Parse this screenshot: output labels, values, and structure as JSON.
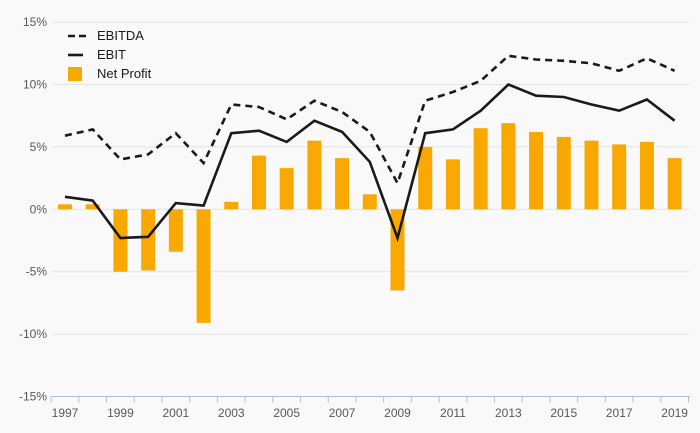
{
  "chart_data": {
    "type": "combo-bar-line",
    "title": "",
    "categories": [
      "1997",
      "1998",
      "1999",
      "2000",
      "2001",
      "2002",
      "2003",
      "2004",
      "2005",
      "2006",
      "2007",
      "2008",
      "2009",
      "2010",
      "2011",
      "2012",
      "2013",
      "2014",
      "2015",
      "2016",
      "2017",
      "2018",
      "2019"
    ],
    "series": [
      {
        "name": "EBITDA",
        "type": "line",
        "line_style": "dashed",
        "color": "#1a1a1a",
        "values": [
          5.9,
          6.4,
          4.0,
          4.4,
          6.1,
          3.7,
          8.4,
          8.2,
          7.2,
          8.7,
          7.8,
          6.2,
          2.1,
          8.7,
          9.4,
          10.3,
          12.3,
          12.0,
          11.9,
          11.7,
          11.1,
          12.1,
          11.1
        ]
      },
      {
        "name": "EBIT",
        "type": "line",
        "line_style": "solid",
        "color": "#1a1a1a",
        "values": [
          1.0,
          0.7,
          -2.3,
          -2.2,
          0.5,
          0.3,
          6.1,
          6.3,
          5.4,
          7.1,
          6.2,
          3.8,
          -2.3,
          6.1,
          6.4,
          7.9,
          10.0,
          9.1,
          9.0,
          8.4,
          7.9,
          8.8,
          7.1
        ]
      },
      {
        "name": "Net Profit",
        "type": "bar",
        "color": "#F9A800",
        "values": [
          0.4,
          0.4,
          -5.0,
          -4.9,
          -3.4,
          -9.1,
          0.6,
          4.3,
          3.3,
          5.5,
          4.1,
          1.2,
          -6.5,
          5.0,
          4.0,
          6.5,
          6.9,
          6.2,
          5.8,
          5.5,
          5.2,
          5.4,
          4.1
        ]
      }
    ],
    "ylim": [
      -15,
      15
    ],
    "ytick_step": 5,
    "ytick_labels": [
      "15%",
      "10%",
      "5%",
      "0%",
      "-5%",
      "-10%",
      "-15%"
    ],
    "xtick_labels": [
      "1997",
      "1999",
      "2001",
      "2003",
      "2005",
      "2007",
      "2009",
      "2011",
      "2013",
      "2015",
      "2017",
      "2019"
    ],
    "grid": true,
    "legend_position": "top-left",
    "background_color": "#f9f9f9",
    "grid_color": "#e3e3e3",
    "axis_color": "#b3bcd2",
    "label_color": "#595959"
  }
}
